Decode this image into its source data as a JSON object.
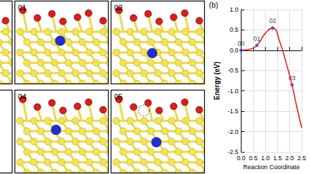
{
  "structure_panels": [
    "01",
    "02",
    "04",
    "05"
  ],
  "chart_data": {
    "type": "line",
    "label": "(b)",
    "x_label": "Reaction Coordinate",
    "y_label": "Energy (eV)",
    "x": [
      0,
      0.3,
      0.65,
      1.0,
      1.3,
      1.6,
      1.9,
      2.1,
      2.3,
      2.5
    ],
    "values": [
      0,
      0.02,
      0.12,
      0.42,
      0.55,
      0.2,
      -0.4,
      -0.85,
      -1.4,
      -1.9
    ],
    "color": "#e02020",
    "points": {
      "x": [
        0,
        0.65,
        1.3,
        2.1
      ],
      "values": [
        0,
        0.12,
        0.55,
        -0.85
      ],
      "labels": [
        "00",
        "01",
        "02",
        "03"
      ],
      "color": "#1f3fd0",
      "marker": "circle"
    },
    "xlim": [
      0,
      2.5
    ],
    "xticks": [
      {
        "value": 0,
        "label": "0.0"
      },
      0.5,
      {
        "value": 1,
        "label": "1.0"
      },
      1.5,
      {
        "value": 2,
        "label": "2.0"
      },
      2.5
    ],
    "ylim": [
      -2.5,
      1.0
    ],
    "yticks": [
      -2.5,
      {
        "value": -2,
        "label": "-2.0"
      },
      -1.5,
      {
        "value": -1,
        "label": "-1.0"
      },
      -0.5,
      {
        "value": 0,
        "label": "0.0"
      },
      0.5,
      {
        "value": 1,
        "label": "1.0"
      }
    ],
    "grid": true
  }
}
